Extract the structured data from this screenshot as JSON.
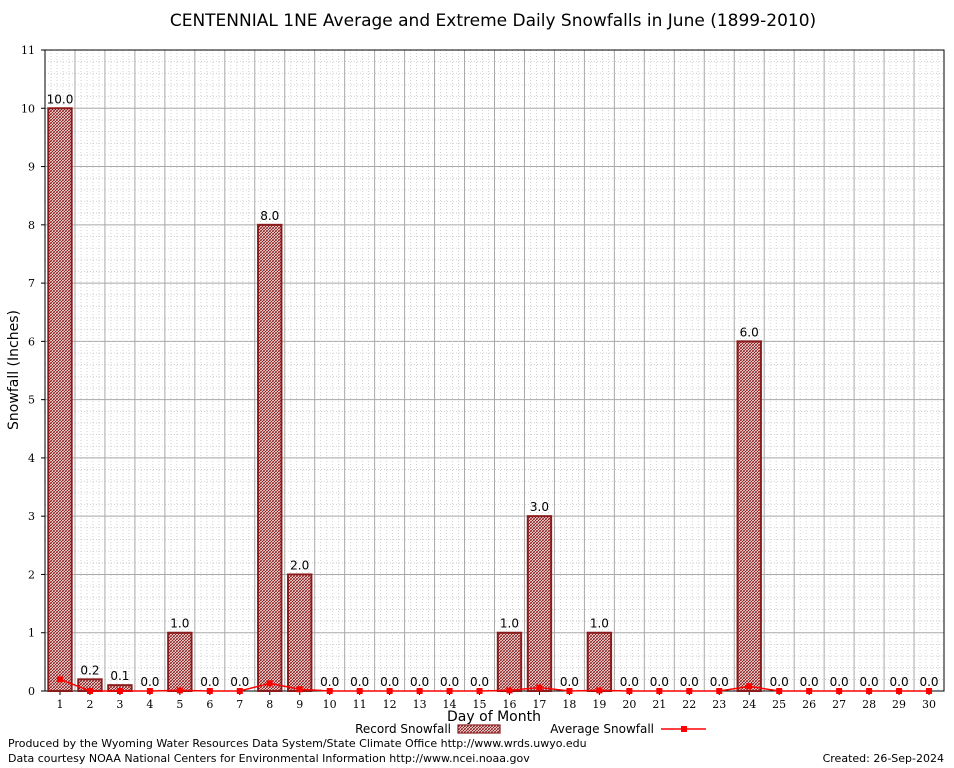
{
  "chart_data": {
    "type": "bar",
    "title": "CENTENNIAL 1NE Average and Extreme Daily Snowfalls in June (1899-2010)",
    "xlabel": "Day of Month",
    "ylabel": "Snowfall (Inches)",
    "ylim": [
      0,
      11
    ],
    "y_ticks": [
      "0",
      "1",
      "2",
      "3",
      "4",
      "5",
      "6",
      "7",
      "8",
      "9",
      "10",
      "11"
    ],
    "categories": [
      "1",
      "2",
      "3",
      "4",
      "5",
      "6",
      "7",
      "8",
      "9",
      "10",
      "11",
      "12",
      "13",
      "14",
      "15",
      "16",
      "17",
      "18",
      "19",
      "20",
      "21",
      "22",
      "23",
      "24",
      "25",
      "26",
      "27",
      "28",
      "29",
      "30"
    ],
    "grid": true,
    "series": [
      {
        "name": "Record Snowfall",
        "kind": "bar",
        "color": "#8b1a1a",
        "values": [
          10.0,
          0.2,
          0.1,
          0.0,
          1.0,
          0.0,
          0.0,
          8.0,
          2.0,
          0.0,
          0.0,
          0.0,
          0.0,
          0.0,
          0.0,
          1.0,
          3.0,
          0.0,
          1.0,
          0.0,
          0.0,
          0.0,
          0.0,
          6.0,
          0.0,
          0.0,
          0.0,
          0.0,
          0.0,
          0.0
        ],
        "labels": [
          "10.0",
          "0.2",
          "0.1",
          "0.0",
          "1.0",
          "0.0",
          "0.0",
          "8.0",
          "2.0",
          "0.0",
          "0.0",
          "0.0",
          "0.0",
          "0.0",
          "0.0",
          "1.0",
          "3.0",
          "0.0",
          "1.0",
          "0.0",
          "0.0",
          "0.0",
          "0.0",
          "6.0",
          "0.0",
          "0.0",
          "0.0",
          "0.0",
          "0.0",
          "0.0"
        ]
      },
      {
        "name": "Average Snowfall",
        "kind": "line",
        "color": "#ff0000",
        "values": [
          0.2,
          0.0,
          0.0,
          0.0,
          0.01,
          0.0,
          0.0,
          0.13,
          0.03,
          0.0,
          0.0,
          0.0,
          0.0,
          0.0,
          0.0,
          0.01,
          0.06,
          0.0,
          0.01,
          0.0,
          0.0,
          0.0,
          0.0,
          0.08,
          0.0,
          0.0,
          0.0,
          0.0,
          0.0,
          0.0
        ]
      }
    ],
    "legend": {
      "placement": "bottom-center"
    }
  },
  "footer": {
    "credit1": "Produced by the Wyoming Water Resources Data System/State Climate Office http://www.wrds.uwyo.edu",
    "credit2": "Data courtesy NOAA National Centers for Environmental Information http://www.ncei.noaa.gov",
    "created": "Created:  26-Sep-2024"
  }
}
